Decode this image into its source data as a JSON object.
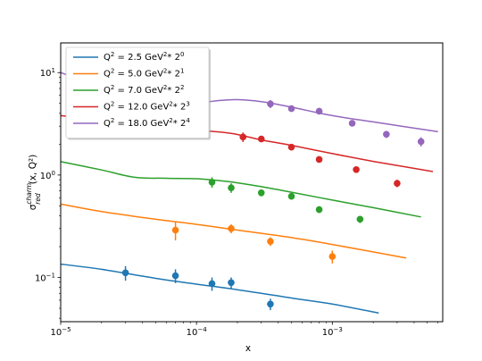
{
  "chart_data": {
    "type": "scatter",
    "title": "",
    "xlabel": "x",
    "ylabel_main": "σ",
    "ylabel_sup": "charm",
    "ylabel_sub": "red",
    "ylabel_tail": "(x, Q²)",
    "xscale": "log",
    "yscale": "log",
    "xlim": [
      1e-05,
      0.0065
    ],
    "ylim": [
      0.037,
      19.5
    ],
    "grid": false,
    "legend_position": "top-left",
    "x_ticks": [
      {
        "value": 1e-05,
        "base": "10",
        "exp": "−5"
      },
      {
        "value": 0.0001,
        "base": "10",
        "exp": "−4"
      },
      {
        "value": 0.001,
        "base": "10",
        "exp": "−3"
      }
    ],
    "y_ticks": [
      {
        "value": 0.1,
        "base": "10",
        "exp": "−1"
      },
      {
        "value": 1,
        "base": "10",
        "exp": "0"
      },
      {
        "value": 10,
        "base": "10",
        "exp": "1"
      }
    ],
    "series": [
      {
        "q2": "2.5",
        "pow": "0",
        "color": "#1f77b4",
        "curve": {
          "x": [
            1e-05,
            2e-05,
            5e-05,
            0.0001,
            0.0002,
            0.0005,
            0.001,
            0.0022
          ],
          "y": [
            0.135,
            0.12,
            0.098,
            0.086,
            0.076,
            0.063,
            0.055,
            0.045
          ]
        },
        "points": [
          {
            "x": 3e-05,
            "y": 0.111,
            "err": 0.018
          },
          {
            "x": 7e-05,
            "y": 0.104,
            "err": 0.016
          },
          {
            "x": 0.00013,
            "y": 0.087,
            "err": 0.013
          },
          {
            "x": 0.00018,
            "y": 0.089,
            "err": 0.011
          },
          {
            "x": 0.00035,
            "y": 0.055,
            "err": 0.007
          }
        ]
      },
      {
        "q2": "5.0",
        "pow": "1",
        "color": "#ff7f0e",
        "curve": {
          "x": [
            1e-05,
            2e-05,
            5e-05,
            0.0001,
            0.0002,
            0.0005,
            0.001,
            0.0035
          ],
          "y": [
            0.52,
            0.44,
            0.37,
            0.33,
            0.29,
            0.245,
            0.21,
            0.155
          ]
        },
        "points": [
          {
            "x": 7e-05,
            "y": 0.29,
            "err": 0.06
          },
          {
            "x": 0.00018,
            "y": 0.3,
            "err": 0.03
          },
          {
            "x": 0.00035,
            "y": 0.225,
            "err": 0.022
          },
          {
            "x": 0.001,
            "y": 0.16,
            "err": 0.023
          }
        ]
      },
      {
        "q2": "7.0",
        "pow": "2",
        "color": "#2ca02c",
        "curve": {
          "x": [
            1e-05,
            2e-05,
            3.5e-05,
            6e-05,
            0.0001,
            0.00015,
            0.0002,
            0.0003,
            0.0005,
            0.001,
            0.002,
            0.0045
          ],
          "y": [
            1.35,
            1.12,
            0.95,
            0.93,
            0.92,
            0.88,
            0.84,
            0.77,
            0.68,
            0.57,
            0.48,
            0.39
          ]
        },
        "points": [
          {
            "x": 0.00013,
            "y": 0.85,
            "err": 0.1
          },
          {
            "x": 0.00018,
            "y": 0.75,
            "err": 0.08
          },
          {
            "x": 0.0003,
            "y": 0.67,
            "err": 0.05
          },
          {
            "x": 0.0005,
            "y": 0.62,
            "err": 0.04
          },
          {
            "x": 0.0008,
            "y": 0.46,
            "err": 0.035
          },
          {
            "x": 0.0016,
            "y": 0.37,
            "err": 0.03
          }
        ]
      },
      {
        "q2": "12.0",
        "pow": "3",
        "color": "#d62728",
        "curve": {
          "x": [
            1e-05,
            2e-05,
            5e-05,
            0.0001,
            0.00018,
            0.0003,
            0.0005,
            0.001,
            0.002,
            0.0055
          ],
          "y": [
            3.8,
            3.45,
            3.05,
            2.75,
            2.55,
            2.2,
            1.95,
            1.62,
            1.36,
            1.08
          ]
        },
        "points": [
          {
            "x": 0.00022,
            "y": 2.35,
            "err": 0.25
          },
          {
            "x": 0.0003,
            "y": 2.25,
            "err": 0.15
          },
          {
            "x": 0.0005,
            "y": 1.87,
            "err": 0.12
          },
          {
            "x": 0.0008,
            "y": 1.42,
            "err": 0.1
          },
          {
            "x": 0.0015,
            "y": 1.13,
            "err": 0.08
          },
          {
            "x": 0.003,
            "y": 0.83,
            "err": 0.07
          }
        ]
      },
      {
        "q2": "18.0",
        "pow": "4",
        "color": "#9467bd",
        "curve": {
          "x": [
            1e-05,
            2e-05,
            5e-05,
            0.0001,
            0.00015,
            0.0002,
            0.0003,
            0.0005,
            0.001,
            0.002,
            0.006
          ],
          "y": [
            10.0,
            7.2,
            5.6,
            5.15,
            5.35,
            5.45,
            5.2,
            4.6,
            3.8,
            3.3,
            2.65
          ]
        },
        "points": [
          {
            "x": 0.00035,
            "y": 4.95,
            "err": 0.45
          },
          {
            "x": 0.0005,
            "y": 4.45,
            "err": 0.3
          },
          {
            "x": 0.0008,
            "y": 4.2,
            "err": 0.25
          },
          {
            "x": 0.0014,
            "y": 3.2,
            "err": 0.2
          },
          {
            "x": 0.0025,
            "y": 2.5,
            "err": 0.2
          },
          {
            "x": 0.0045,
            "y": 2.12,
            "err": 0.22
          }
        ]
      }
    ],
    "legend_entries": [
      {
        "label_prefix": "Q",
        "q2": "2.5",
        "label_mid": " GeV",
        "base": "2",
        "pow": "0"
      },
      {
        "label_prefix": "Q",
        "q2": "5.0",
        "label_mid": " GeV",
        "base": "2",
        "pow": "1"
      },
      {
        "label_prefix": "Q",
        "q2": "7.0",
        "label_mid": " GeV",
        "base": "2",
        "pow": "2"
      },
      {
        "label_prefix": "Q",
        "q2": "12.0",
        "label_mid": " GeV",
        "base": "2",
        "pow": "3"
      },
      {
        "label_prefix": "Q",
        "q2": "18.0",
        "label_mid": " GeV",
        "base": "2",
        "pow": "4"
      }
    ]
  }
}
